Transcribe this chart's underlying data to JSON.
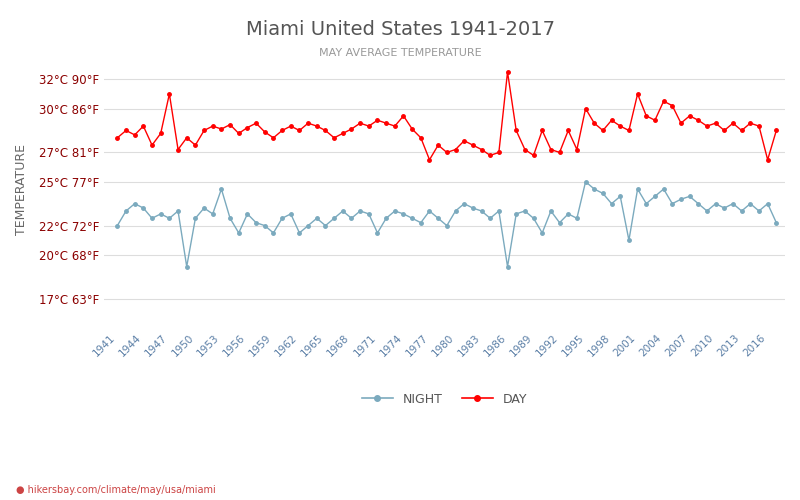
{
  "title": "Miami United States 1941-2017",
  "subtitle": "MAY AVERAGE TEMPERATURE",
  "ylabel": "TEMPERATURE",
  "footer": "hikersbay.com/climate/may/usa/miami",
  "years": [
    1941,
    1942,
    1943,
    1944,
    1945,
    1946,
    1947,
    1948,
    1949,
    1950,
    1951,
    1952,
    1953,
    1954,
    1955,
    1956,
    1957,
    1958,
    1959,
    1960,
    1961,
    1962,
    1963,
    1964,
    1965,
    1966,
    1967,
    1968,
    1969,
    1970,
    1971,
    1972,
    1973,
    1974,
    1975,
    1976,
    1977,
    1978,
    1979,
    1980,
    1981,
    1982,
    1983,
    1984,
    1985,
    1986,
    1987,
    1988,
    1989,
    1990,
    1991,
    1992,
    1993,
    1994,
    1995,
    1996,
    1997,
    1998,
    1999,
    2000,
    2001,
    2002,
    2003,
    2004,
    2005,
    2006,
    2007,
    2008,
    2009,
    2010,
    2011,
    2012,
    2013,
    2014,
    2015,
    2016,
    2017
  ],
  "day_temps": [
    28.0,
    28.5,
    28.2,
    28.8,
    27.5,
    28.3,
    31.0,
    27.2,
    28.0,
    27.5,
    28.5,
    28.8,
    28.6,
    28.9,
    28.3,
    28.7,
    29.0,
    28.4,
    28.0,
    28.5,
    28.8,
    28.5,
    29.0,
    28.8,
    28.5,
    28.0,
    28.3,
    28.6,
    29.0,
    28.8,
    29.2,
    29.0,
    28.8,
    29.5,
    28.6,
    28.0,
    26.5,
    27.5,
    27.0,
    27.2,
    27.8,
    27.5,
    27.2,
    26.8,
    27.0,
    32.5,
    28.5,
    27.2,
    26.8,
    28.5,
    27.2,
    27.0,
    28.5,
    27.2,
    30.0,
    29.0,
    28.5,
    29.2,
    28.8,
    28.5,
    31.0,
    29.5,
    29.2,
    30.5,
    30.2,
    29.0,
    29.5,
    29.2,
    28.8,
    29.0,
    28.5,
    29.0,
    28.5,
    29.0,
    28.8,
    26.5,
    28.5
  ],
  "night_temps": [
    22.0,
    23.0,
    23.5,
    23.2,
    22.5,
    22.8,
    22.5,
    23.0,
    19.2,
    22.5,
    23.2,
    22.8,
    24.5,
    22.5,
    21.5,
    22.8,
    22.2,
    22.0,
    21.5,
    22.5,
    22.8,
    21.5,
    22.0,
    22.5,
    22.0,
    22.5,
    23.0,
    22.5,
    23.0,
    22.8,
    21.5,
    22.5,
    23.0,
    22.8,
    22.5,
    22.2,
    23.0,
    22.5,
    22.0,
    23.0,
    23.5,
    23.2,
    23.0,
    22.5,
    23.0,
    19.2,
    22.8,
    23.0,
    22.5,
    21.5,
    23.0,
    22.2,
    22.8,
    22.5,
    25.0,
    24.5,
    24.2,
    23.5,
    24.0,
    21.0,
    24.5,
    23.5,
    24.0,
    24.5,
    23.5,
    23.8,
    24.0,
    23.5,
    23.0,
    23.5,
    23.2,
    23.5,
    23.0,
    23.5,
    23.0,
    23.5,
    22.2
  ],
  "day_color": "#ff0000",
  "night_color": "#7BAABE",
  "background_color": "#ffffff",
  "grid_color": "#dddddd",
  "title_color": "#555555",
  "subtitle_color": "#999999",
  "label_color": "#8B0000",
  "ylabel_color": "#666666",
  "tick_color": "#5b7fa6",
  "yticks_celsius": [
    17,
    20,
    22,
    25,
    27,
    30,
    32
  ],
  "yticks_fahrenheit": [
    63,
    68,
    72,
    77,
    81,
    86,
    90
  ],
  "ylim": [
    15,
    34
  ],
  "xtick_years": [
    1941,
    1944,
    1947,
    1950,
    1953,
    1956,
    1959,
    1962,
    1965,
    1968,
    1971,
    1974,
    1977,
    1980,
    1983,
    1986,
    1989,
    1992,
    1995,
    1998,
    2001,
    2004,
    2007,
    2010,
    2013,
    2016
  ]
}
